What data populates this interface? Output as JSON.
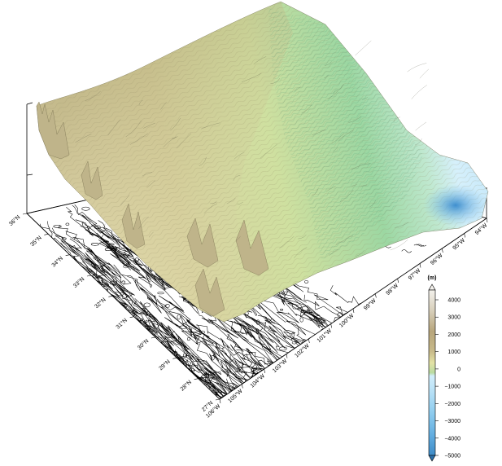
{
  "map": {
    "latitude_labels": [
      "36°N",
      "35°N",
      "34°N",
      "33°N",
      "32°N",
      "31°N",
      "30°N",
      "29°N",
      "28°N",
      "27°N"
    ],
    "longitude_labels": [
      "106°W",
      "105°W",
      "104°W",
      "103°W",
      "102°W",
      "101°W",
      "100°W",
      "99°W",
      "98°W",
      "97°W",
      "96°W",
      "95°W",
      "94°W"
    ]
  },
  "colorbar": {
    "unit": "(m)",
    "labels": [
      "4000",
      "3000",
      "2000",
      "1000",
      "0",
      "−1000",
      "−2000",
      "−3000",
      "−4000",
      "−5000"
    ],
    "colors": {
      "high": "#efece4",
      "mid_high": "#a68d5e",
      "upper": "#c8b88a",
      "low_land": "#e6e4a8",
      "lowland_green": "#b4d8a0",
      "coast": "#84c7a6",
      "shallow": "#d2eefb",
      "mid_sea": "#78bde6",
      "deep": "#4f9fd2",
      "deepest": "#3a86c4"
    }
  }
}
